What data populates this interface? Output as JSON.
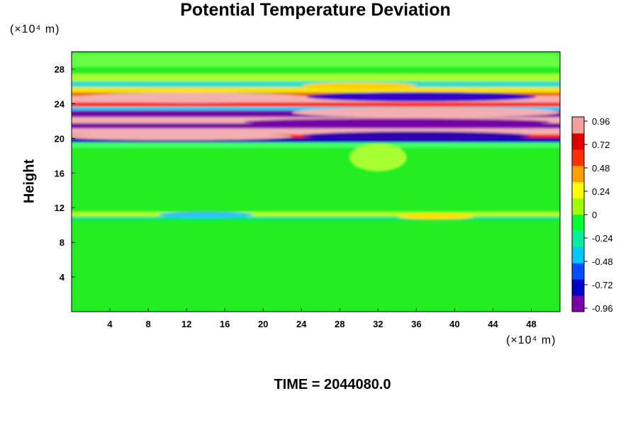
{
  "chart_data": {
    "type": "heatmap",
    "title": "Potential Temperature Deviation",
    "ylabel": "Height",
    "x_unit": "(×10⁴ m)",
    "y_unit": "(×10⁴ m)",
    "footer": "TIME = 2044080.0",
    "x_ticks": [
      4,
      8,
      12,
      16,
      20,
      24,
      28,
      32,
      36,
      40,
      44,
      48
    ],
    "y_ticks": [
      4,
      8,
      12,
      16,
      20,
      24,
      28
    ],
    "xlim": [
      0,
      51
    ],
    "ylim": [
      0,
      30
    ],
    "colorbar": {
      "ticks": [
        "0.96",
        "0.72",
        "0.48",
        "0.24",
        "0",
        "-0.24",
        "-0.48",
        "-0.72",
        "-0.96"
      ],
      "range": [
        -0.96,
        0.96
      ],
      "colors": [
        "#7a00a8",
        "#0000c8",
        "#0050ff",
        "#00c8ff",
        "#00f0a0",
        "#00ff30",
        "#a0ff00",
        "#ffff00",
        "#ffa000",
        "#ff3000",
        "#e00000",
        "#f0a0a0"
      ]
    },
    "field": {
      "background": "#22ee22",
      "bands": [
        {
          "y": 29.0,
          "h": 1.6,
          "color": "#66ff44"
        },
        {
          "y": 27.0,
          "h": 1.0,
          "color": "#a8ff33"
        },
        {
          "y": 26.2,
          "h": 0.8,
          "color": "#33ddcc"
        },
        {
          "y": 25.6,
          "h": 0.6,
          "color": "#ffe000"
        },
        {
          "y": 25.0,
          "h": 0.5,
          "color": "#ff5500"
        },
        {
          "y": 24.5,
          "h": 0.8,
          "color": "#f4b0b0"
        },
        {
          "y": 23.9,
          "h": 0.5,
          "color": "#ff2200"
        },
        {
          "y": 23.4,
          "h": 0.5,
          "color": "#00d0ff"
        },
        {
          "y": 22.8,
          "h": 0.9,
          "color": "#7700a8"
        },
        {
          "y": 22.0,
          "h": 0.9,
          "color": "#f4b0b0"
        },
        {
          "y": 21.4,
          "h": 0.7,
          "color": "#7700a8"
        },
        {
          "y": 20.8,
          "h": 0.7,
          "color": "#f4b0b0"
        },
        {
          "y": 20.2,
          "h": 0.5,
          "color": "#ff2200"
        },
        {
          "y": 19.8,
          "h": 0.5,
          "color": "#0000c0"
        },
        {
          "y": 19.2,
          "h": 0.6,
          "color": "#44ff66"
        },
        {
          "y": 11.2,
          "h": 0.7,
          "color": "#b8ff22"
        },
        {
          "y": 10.8,
          "h": 0.4,
          "color": "#00e890"
        }
      ],
      "blobs": [
        {
          "x": 12.5,
          "y": 24.7,
          "rx": 12,
          "ry": 0.6,
          "color": "#f4b0b0"
        },
        {
          "x": 36.5,
          "y": 24.8,
          "rx": 12,
          "ry": 0.55,
          "color": "#3300c8"
        },
        {
          "x": 37,
          "y": 23.0,
          "rx": 14,
          "ry": 0.6,
          "color": "#f4b0b0"
        },
        {
          "x": 34,
          "y": 21.9,
          "rx": 16,
          "ry": 0.4,
          "color": "#7700a8"
        },
        {
          "x": 36,
          "y": 20.3,
          "rx": 12,
          "ry": 0.5,
          "color": "#3300b0"
        },
        {
          "x": 11,
          "y": 20.2,
          "rx": 12,
          "ry": 0.4,
          "color": "#f4b0b0"
        },
        {
          "x": 32,
          "y": 17.8,
          "rx": 3,
          "ry": 1.6,
          "color": "#a8ff33"
        },
        {
          "x": 38,
          "y": 11.0,
          "rx": 4,
          "ry": 0.35,
          "color": "#ffe000"
        },
        {
          "x": 14,
          "y": 11.2,
          "rx": 5,
          "ry": 0.35,
          "color": "#30c0ff"
        },
        {
          "x": 30,
          "y": 26.1,
          "rx": 6,
          "ry": 0.35,
          "color": "#ffd000"
        }
      ]
    }
  }
}
